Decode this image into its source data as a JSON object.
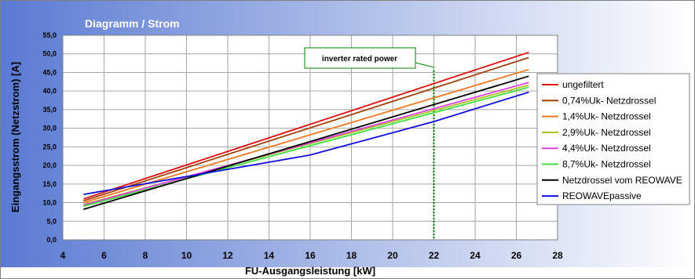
{
  "chart_data": {
    "type": "line",
    "title": "Diagramm / Strom",
    "xlabel": "FU-Ausgangsleistung [kW]",
    "ylabel": "Eingangsstrom (Netzstrom) [A]",
    "xlim": [
      4,
      28
    ],
    "ylim": [
      0,
      55
    ],
    "x_ticks": [
      "4",
      "6",
      "8",
      "10",
      "12",
      "14",
      "16",
      "18",
      "20",
      "22",
      "24",
      "26",
      "28"
    ],
    "y_ticks": [
      "0,0",
      "5,0",
      "10,0",
      "15,0",
      "20,0",
      "25,0",
      "30,0",
      "35,0",
      "40,0",
      "45,0",
      "50,0",
      "55,0"
    ],
    "grid": true,
    "legend_position": "right",
    "annotation": {
      "label": "inverter rated power",
      "x": 22
    },
    "series": [
      {
        "name": "ungefiltert",
        "color": "#e01010",
        "points": [
          [
            5,
            11.0
          ],
          [
            26.6,
            50.4
          ]
        ]
      },
      {
        "name": "0,74%Uk- Netzdrossel",
        "color": "#a0400a",
        "points": [
          [
            5,
            10.5
          ],
          [
            26.6,
            49.0
          ]
        ]
      },
      {
        "name": "1,4%Uk- Netzdrossel",
        "color": "#f07820",
        "points": [
          [
            5,
            10.0
          ],
          [
            26.6,
            45.8
          ]
        ]
      },
      {
        "name": "2,9%Uk- Netzdrossel",
        "color": "#a8c020",
        "points": [
          [
            5,
            9.5
          ],
          [
            26.6,
            41.6
          ]
        ]
      },
      {
        "name": "4,4%Uk- Netzdrossel",
        "color": "#e040e0",
        "points": [
          [
            5,
            9.3
          ],
          [
            26.6,
            42.3
          ]
        ]
      },
      {
        "name": "8,7%Uk- Netzdrossel",
        "color": "#40e040",
        "points": [
          [
            5,
            9.0
          ],
          [
            26.6,
            41.0
          ]
        ]
      },
      {
        "name": "Netzdrossel vom REOWAVE",
        "color": "#000000",
        "points": [
          [
            5,
            8.2
          ],
          [
            26.6,
            44.0
          ]
        ]
      },
      {
        "name": "REOWAVEpassive",
        "color": "#1010e0",
        "points": [
          [
            5,
            12.2
          ],
          [
            16,
            22.8
          ],
          [
            22,
            31.8
          ],
          [
            26.6,
            39.7
          ]
        ]
      }
    ]
  }
}
